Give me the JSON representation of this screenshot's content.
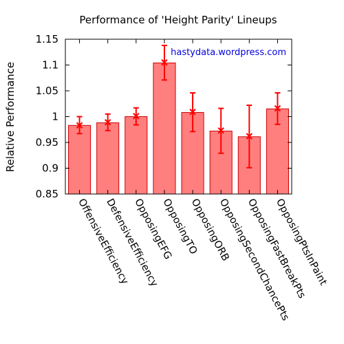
{
  "chart_data": {
    "type": "bar",
    "title": "Performance of 'Height Parity' Lineups",
    "xlabel": "",
    "ylabel": "Relative Performance",
    "ylim": [
      0.85,
      1.15
    ],
    "yticks": [
      0.85,
      0.9,
      0.95,
      1,
      1.05,
      1.1,
      1.15
    ],
    "ytick_labels": [
      "0.85",
      "0.9",
      "0.95",
      "1",
      "1.05",
      "1.1",
      "1.15"
    ],
    "categories": [
      "OffensiveEfficiency",
      "DefensiveEfficiency",
      "OpposingEFG",
      "OpposingTO",
      "OpposingORB",
      "OpposingSecondChancePts",
      "OpposingFastBreakPts",
      "OpposingPtsInPaint"
    ],
    "values": [
      0.983,
      0.988,
      1.0,
      1.104,
      1.008,
      0.972,
      0.961,
      1.015
    ],
    "error_points": [
      0.983,
      0.989,
      1.001,
      1.105,
      1.009,
      0.973,
      0.962,
      1.016
    ],
    "error_low": [
      0.967,
      0.973,
      0.984,
      1.071,
      0.971,
      0.929,
      0.901,
      0.985
    ],
    "error_high": [
      1.0,
      1.005,
      1.017,
      1.138,
      1.046,
      1.016,
      1.022,
      1.046
    ],
    "grid": false,
    "legend": "none",
    "annotation": "hastydata.wordpress.com",
    "colors": {
      "bar_fill": "#ff7f7f",
      "bar_stroke": "#cc0000",
      "errorbar": "#ff0000",
      "annotation": "#0000dd"
    }
  }
}
